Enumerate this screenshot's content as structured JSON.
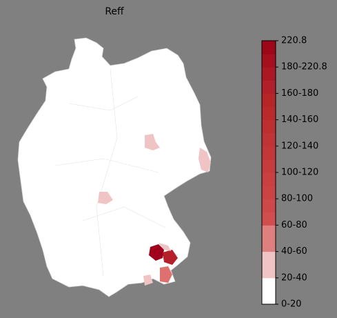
{
  "title": "Reff",
  "colorbar": {
    "colors": [
      "#ffffff",
      "#ffffff",
      "#f0c4c4",
      "#f0c4c4",
      "#de8080",
      "#de8080",
      "#d04e4e",
      "#cd4848",
      "#ca4444",
      "#c84040",
      "#c53c3c",
      "#c23838",
      "#bf3434",
      "#bc3030",
      "#b92b2b",
      "#b52626",
      "#b0202a",
      "#aa1824",
      "#a4101e",
      "#9c081a"
    ],
    "ticks": [
      "0-20",
      "20-40",
      "40-60",
      "60-80",
      "80-100",
      "100-120",
      "120-140",
      "140-160",
      "160-180",
      "180-220.8",
      "220.8"
    ]
  }
}
